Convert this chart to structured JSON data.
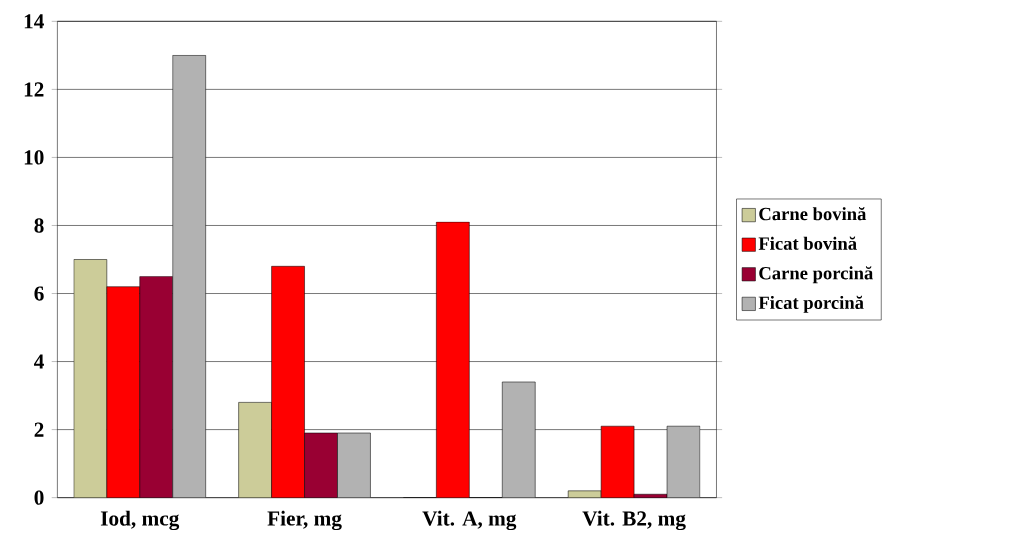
{
  "chart_data": {
    "type": "bar",
    "categories": [
      "Iod, mcg",
      "Fier, mg",
      "Vit. A, mg",
      "Vit. B2, mg"
    ],
    "series": [
      {
        "name": "Carne bovină",
        "color": "#cccc99",
        "values": [
          7.0,
          2.8,
          0,
          0.2
        ]
      },
      {
        "name": "Ficat bovină",
        "color": "#ff0000",
        "values": [
          6.2,
          6.8,
          8.1,
          2.1
        ]
      },
      {
        "name": "Carne porcină",
        "color": "#990033",
        "values": [
          6.5,
          1.9,
          0,
          0.1
        ]
      },
      {
        "name": "Ficat porcină",
        "color": "#b2b2b2",
        "values": [
          13.0,
          1.9,
          3.4,
          2.1
        ]
      }
    ],
    "ylim": [
      0,
      14
    ],
    "yticks": [
      0,
      2,
      4,
      6,
      8,
      10,
      12,
      14
    ],
    "grid": "y",
    "legend": "right"
  }
}
